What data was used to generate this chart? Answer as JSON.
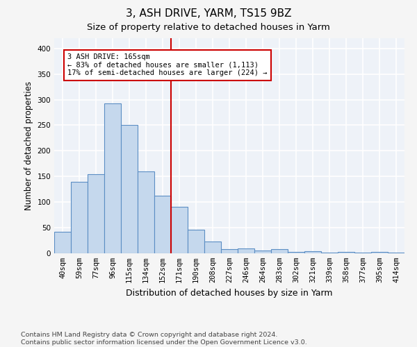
{
  "title": "3, ASH DRIVE, YARM, TS15 9BZ",
  "subtitle": "Size of property relative to detached houses in Yarm",
  "xlabel": "Distribution of detached houses by size in Yarm",
  "ylabel": "Number of detached properties",
  "bar_labels": [
    "40sqm",
    "59sqm",
    "77sqm",
    "96sqm",
    "115sqm",
    "134sqm",
    "152sqm",
    "171sqm",
    "190sqm",
    "208sqm",
    "227sqm",
    "246sqm",
    "264sqm",
    "283sqm",
    "302sqm",
    "321sqm",
    "339sqm",
    "358sqm",
    "377sqm",
    "395sqm",
    "414sqm"
  ],
  "bar_values": [
    42,
    140,
    155,
    293,
    251,
    160,
    113,
    91,
    46,
    23,
    8,
    10,
    5,
    8,
    3,
    4,
    2,
    3,
    2,
    3,
    2
  ],
  "bar_color": "#c5d8ed",
  "bar_edge_color": "#5b8ec4",
  "vline_color": "#cc0000",
  "annotation_text": "3 ASH DRIVE: 165sqm\n← 83% of detached houses are smaller (1,113)\n17% of semi-detached houses are larger (224) →",
  "annotation_box_color": "#ffffff",
  "annotation_box_edge_color": "#cc0000",
  "footer_text": "Contains HM Land Registry data © Crown copyright and database right 2024.\nContains public sector information licensed under the Open Government Licence v3.0.",
  "ylim": [
    0,
    420
  ],
  "background_color": "#eef2f8",
  "grid_color": "#ffffff",
  "title_fontsize": 11,
  "subtitle_fontsize": 9.5,
  "tick_fontsize": 7.5,
  "ylabel_fontsize": 8.5,
  "xlabel_fontsize": 9,
  "footer_fontsize": 6.8
}
